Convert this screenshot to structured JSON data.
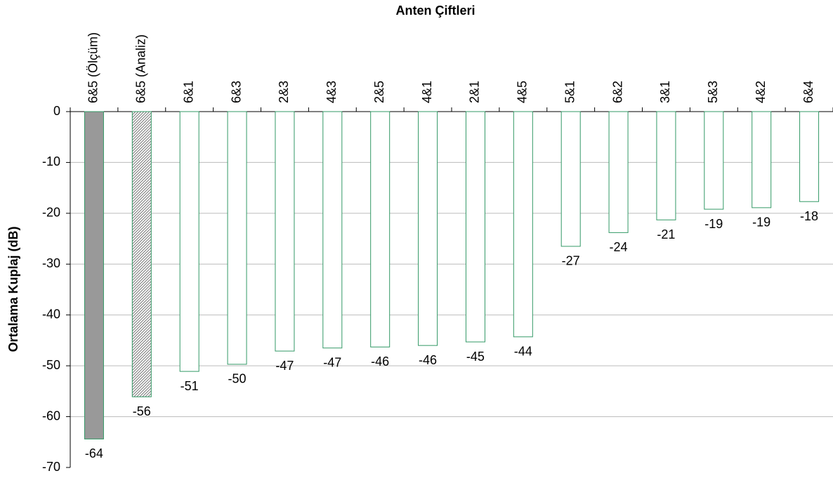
{
  "chart_data": {
    "type": "bar",
    "title": "Anten Çiftleri",
    "y_label": "Ortalama Kuplaj (dB)",
    "categories": [
      "6&5 (Ölçüm)",
      "6&5 (Analiz)",
      "6&1",
      "6&3",
      "2&3",
      "4&3",
      "2&5",
      "4&1",
      "2&1",
      "4&5",
      "5&1",
      "6&2",
      "3&1",
      "5&3",
      "4&2",
      "6&4"
    ],
    "values": [
      -64.4,
      -56.1,
      -51.1,
      -49.7,
      -47.1,
      -46.5,
      -46.3,
      -46.0,
      -45.3,
      -44.3,
      -26.5,
      -23.8,
      -21.3,
      -19.2,
      -18.9,
      -17.7
    ],
    "value_labels": [
      "-64",
      "-56",
      "-51",
      "-50",
      "-47",
      "-47",
      "-46",
      "-46",
      "-45",
      "-44",
      "-27",
      "-24",
      "-21",
      "-19",
      "-19",
      "-18"
    ],
    "bar_styles": [
      "solid",
      "hatched",
      "hollow",
      "hollow",
      "hollow",
      "hollow",
      "hollow",
      "hollow",
      "hollow",
      "hollow",
      "hollow",
      "hollow",
      "hollow",
      "hollow",
      "hollow",
      "hollow"
    ],
    "fill_color": "#999999",
    "edge_color": "#339966",
    "ylim": [
      -70,
      0
    ],
    "yticks": [
      0,
      -10,
      -20,
      -30,
      -40,
      -50,
      -60,
      -70
    ],
    "grid": true
  }
}
